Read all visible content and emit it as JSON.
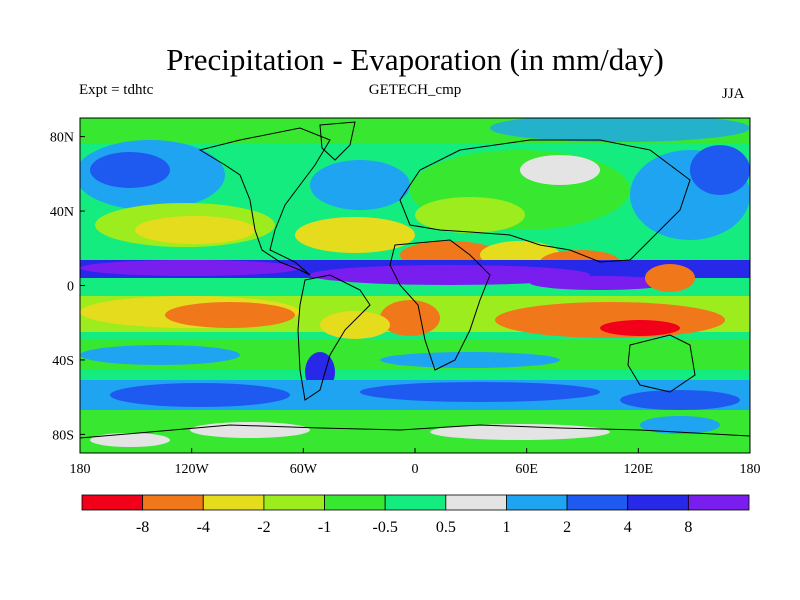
{
  "title": "Precipitation - Evaporation (in mm/day)",
  "experiment": "Expt = tdhtc",
  "run_name": "GETECH_cmp",
  "season": "JJA",
  "map": {
    "projection": "cylindrical equidistant",
    "lon_range": [
      -180,
      180
    ],
    "lat_range": [
      -90,
      90
    ],
    "x_ticks": [
      {
        "lon": -180,
        "label": "180"
      },
      {
        "lon": -120,
        "label": "120W"
      },
      {
        "lon": -60,
        "label": "60W"
      },
      {
        "lon": 0,
        "label": "0"
      },
      {
        "lon": 60,
        "label": "60E"
      },
      {
        "lon": 120,
        "label": "120E"
      },
      {
        "lon": 180,
        "label": "180"
      }
    ],
    "y_ticks": [
      {
        "lat": 80,
        "label": "80N"
      },
      {
        "lat": 40,
        "label": "40N"
      },
      {
        "lat": 0,
        "label": "0"
      },
      {
        "lat": -40,
        "label": "40S"
      },
      {
        "lat": -80,
        "label": "80S"
      }
    ]
  },
  "colorbar": {
    "bin_colors": [
      "#f2001a",
      "#f0781a",
      "#e6dc1e",
      "#9cec1e",
      "#38e830",
      "#14ec80",
      "#e4e4e4",
      "#1ea4f0",
      "#1e5af0",
      "#2828e8",
      "#7a1ef0"
    ],
    "labels": [
      "-8",
      "-4",
      "-2",
      "-1",
      "-0.5",
      "0.5",
      "1",
      "2",
      "4",
      "8"
    ]
  }
}
